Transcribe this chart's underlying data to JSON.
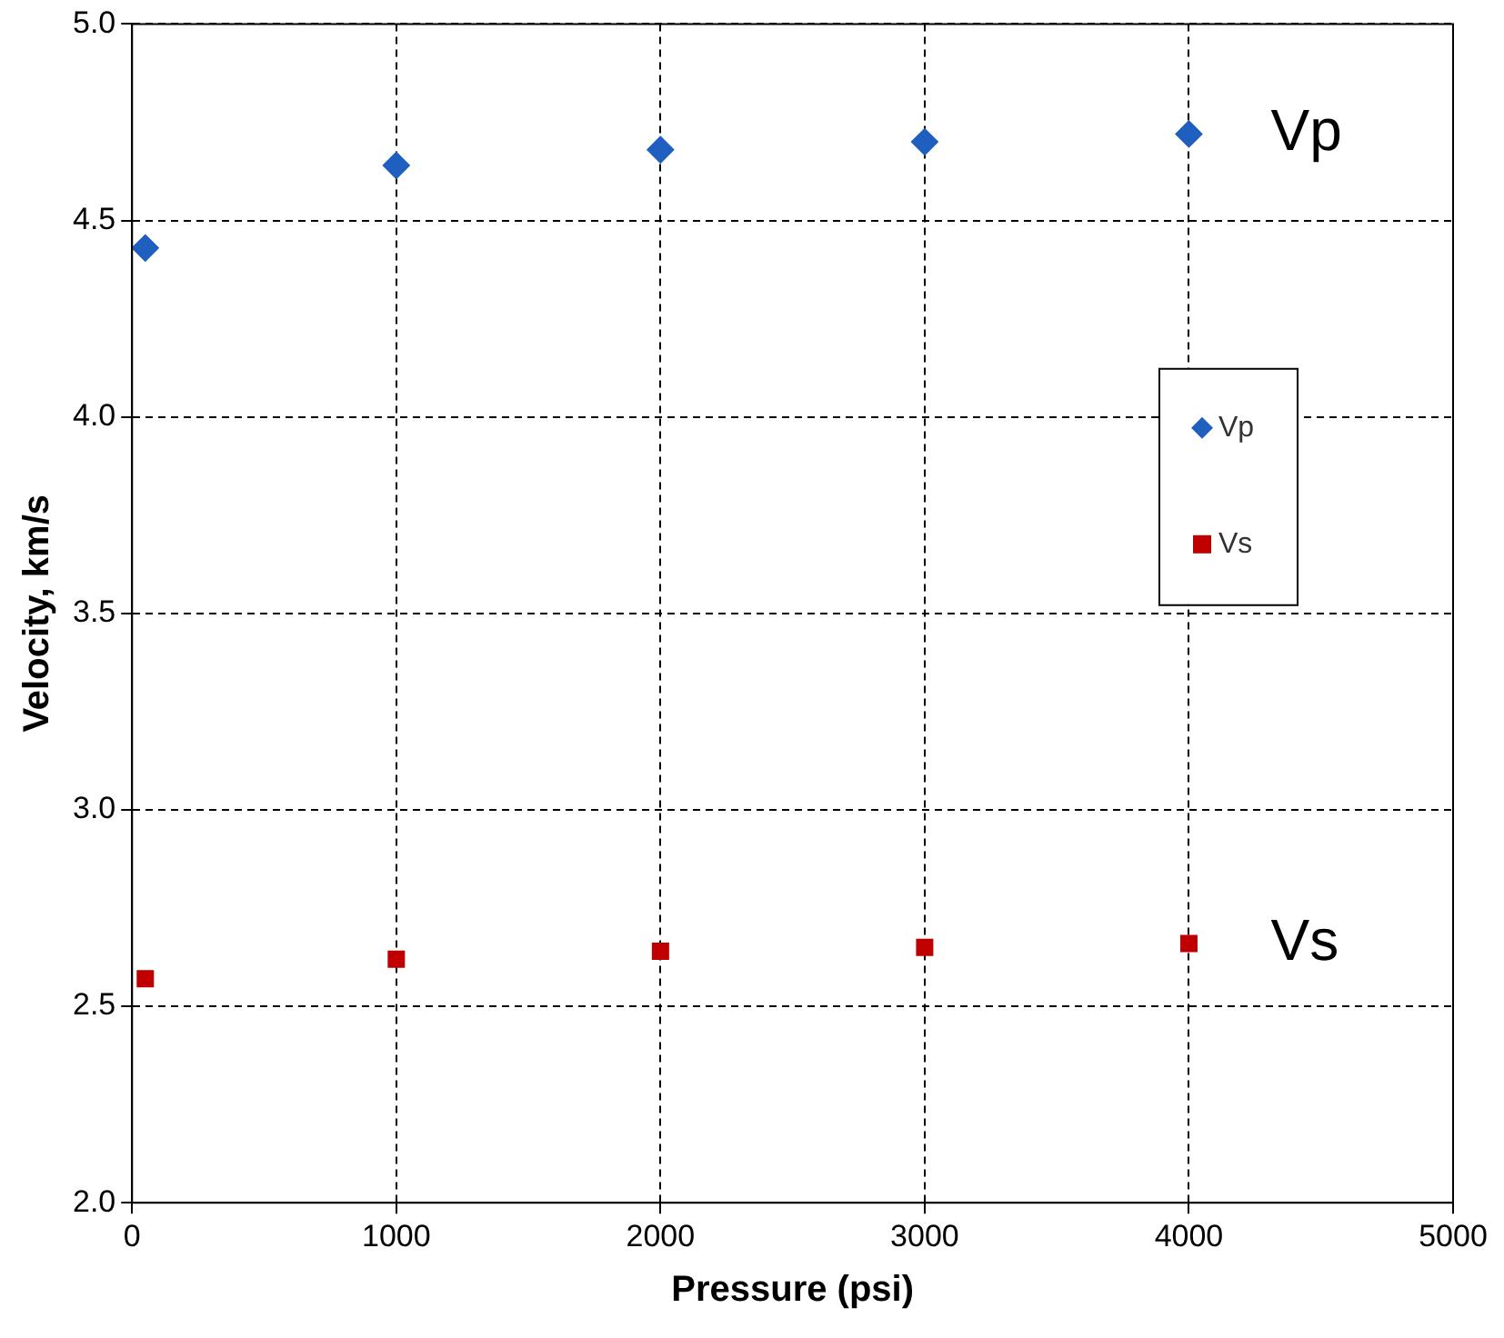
{
  "chart_data": {
    "type": "scatter",
    "xlabel": "Pressure (psi)",
    "ylabel": "Velocity, km/s",
    "xlim": [
      0,
      5000
    ],
    "xticks": [
      0,
      1000,
      2000,
      3000,
      4000,
      5000
    ],
    "ylim": [
      2.0,
      5.0
    ],
    "yticks": [
      {
        "value": 2.0,
        "label": "2.0"
      },
      {
        "value": 2.5,
        "label": "2.5"
      },
      {
        "value": 3.0,
        "label": "3.0"
      },
      {
        "value": 3.5,
        "label": "3.5"
      },
      {
        "value": 4.0,
        "label": "4.0"
      },
      {
        "value": 4.5,
        "label": "4.5"
      },
      {
        "value": 5.0,
        "label": "5.0"
      }
    ],
    "grid": true,
    "legend": "right",
    "series": [
      {
        "name": "Vp",
        "color": "#1f5fbf",
        "marker": "diamond",
        "x": [
          50,
          1000,
          2000,
          3000,
          4000
        ],
        "values": [
          4.43,
          4.64,
          4.68,
          4.7,
          4.72
        ]
      },
      {
        "name": "Vs",
        "color": "#c00000",
        "marker": "square",
        "x": [
          50,
          1000,
          2000,
          3000,
          4000
        ],
        "values": [
          2.57,
          2.62,
          2.64,
          2.65,
          2.66
        ]
      }
    ],
    "annotations": [
      "Vp",
      "Vs"
    ]
  }
}
